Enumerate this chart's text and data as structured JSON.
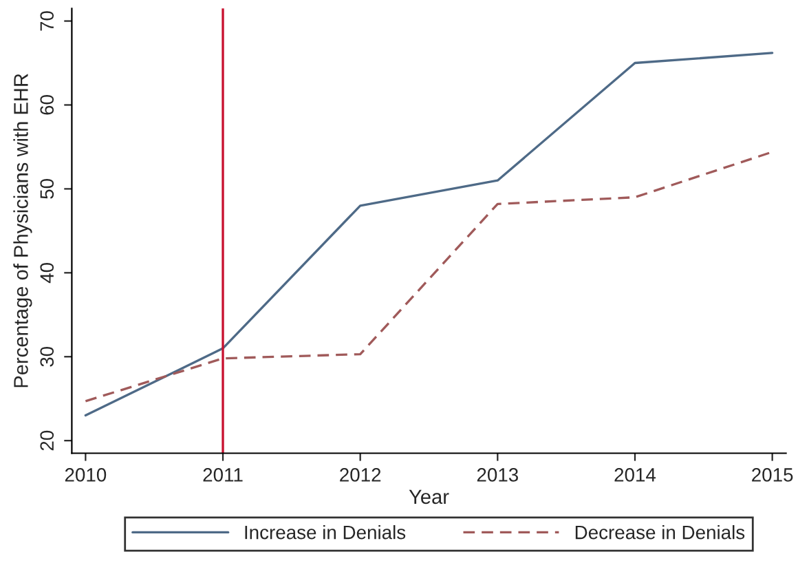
{
  "chart_data": {
    "type": "line",
    "xlabel": "Year",
    "ylabel": "Percentage of Physicians with EHR",
    "x": [
      2010,
      2011,
      2012,
      2013,
      2014,
      2015
    ],
    "series": [
      {
        "name": "Increase in Denials",
        "color": "#4e6a87",
        "line_style": "solid",
        "values": [
          23,
          31,
          48,
          51,
          65,
          66.2
        ]
      },
      {
        "name": "Decrease in Denials",
        "color": "#a05a5a",
        "line_style": "dashed",
        "values": [
          24.7,
          29.8,
          30.3,
          48.2,
          49,
          54.4
        ]
      }
    ],
    "xlim": [
      2009.9,
      2015.1
    ],
    "ylim": [
      18.5,
      71.5
    ],
    "xticks": [
      2010,
      2011,
      2012,
      2013,
      2014,
      2015
    ],
    "yticks": [
      20,
      30,
      40,
      50,
      60,
      70
    ],
    "ref_lines": [
      {
        "axis": "x",
        "value": 2011,
        "color": "#c8102e",
        "line_style": "solid"
      }
    ],
    "grid": false,
    "legend": "bottom",
    "marker": "none"
  }
}
